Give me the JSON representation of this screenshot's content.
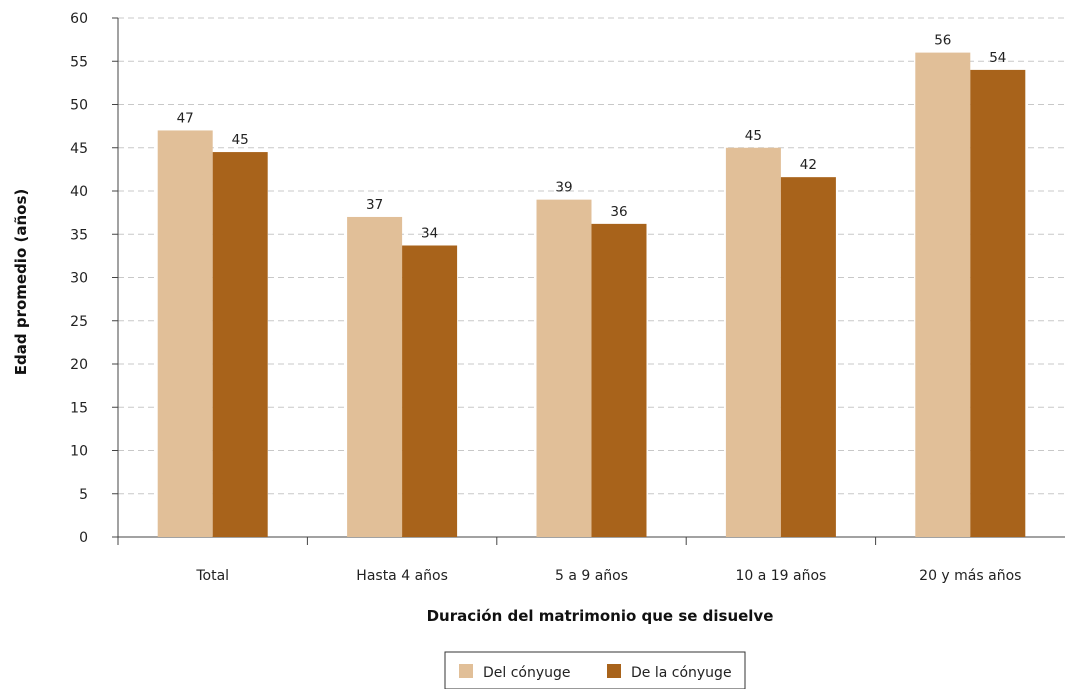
{
  "chart_data": {
    "type": "bar",
    "title": "",
    "xlabel": "Duración del matrimonio que se disuelve",
    "ylabel": "Edad promedio (años)",
    "categories": [
      "Total",
      "Hasta 4 años",
      "5 a 9 años",
      "10 a 19 años",
      "20 y más años"
    ],
    "series": [
      {
        "name": "Del cónyuge",
        "color": "#e1bf98",
        "values": [
          47,
          37,
          39,
          45,
          56
        ],
        "labels": [
          "47",
          "37",
          "39",
          "45",
          "56"
        ]
      },
      {
        "name": "De la cónyuge",
        "color": "#a8631b",
        "values": [
          44.5,
          33.7,
          36.2,
          41.6,
          54
        ],
        "labels": [
          "45",
          "34",
          "36",
          "42",
          "54"
        ]
      }
    ],
    "ylim": [
      0,
      60
    ],
    "yticks": [
      0,
      5,
      10,
      15,
      20,
      25,
      30,
      35,
      40,
      45,
      50,
      55,
      60
    ],
    "grid": true,
    "legend_position": "bottom-center"
  }
}
